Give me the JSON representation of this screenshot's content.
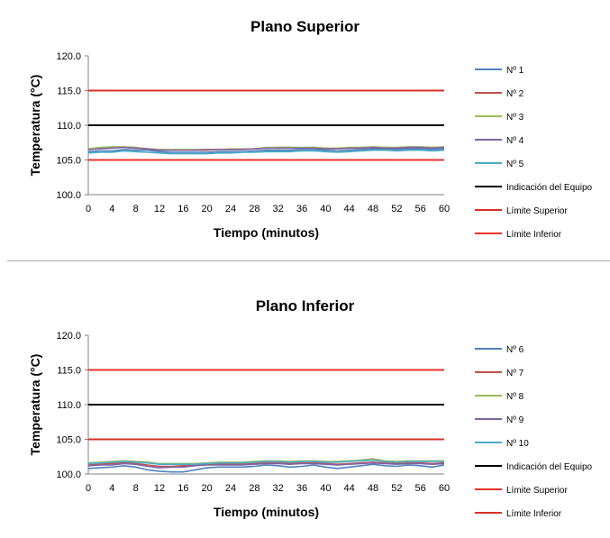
{
  "chart_data": [
    {
      "type": "line",
      "title": "Plano Superior",
      "xlabel": "Tiempo (minutos)",
      "ylabel": "Temperatura (°C)",
      "ylim": [
        100.0,
        120.0
      ],
      "xlim": [
        0,
        60
      ],
      "y_ticks": [
        "100.0",
        "105.0",
        "110.0",
        "115.0",
        "120.0"
      ],
      "x_ticks": [
        "0",
        "4",
        "8",
        "12",
        "16",
        "20",
        "24",
        "28",
        "32",
        "36",
        "40",
        "44",
        "48",
        "52",
        "56",
        "60"
      ],
      "grid": false,
      "legend_position": "right",
      "x": [
        0,
        2,
        4,
        6,
        8,
        10,
        12,
        14,
        16,
        18,
        20,
        22,
        24,
        26,
        28,
        30,
        32,
        34,
        36,
        38,
        40,
        42,
        44,
        46,
        48,
        50,
        52,
        54,
        56,
        58,
        60
      ],
      "series": [
        {
          "name": "Nº 1",
          "color": "#4f81bd",
          "values": [
            106.2,
            106.3,
            106.3,
            106.5,
            106.4,
            106.4,
            106.2,
            106.1,
            106.1,
            106.1,
            106.1,
            106.2,
            106.2,
            106.2,
            106.3,
            106.4,
            106.4,
            106.4,
            106.5,
            106.5,
            106.4,
            106.3,
            106.4,
            106.5,
            106.6,
            106.6,
            106.5,
            106.6,
            106.6,
            106.5,
            106.6
          ]
        },
        {
          "name": "Nº 2",
          "color": "#c0504d",
          "values": [
            106.6,
            106.7,
            106.8,
            106.8,
            106.7,
            106.6,
            106.5,
            106.4,
            106.4,
            106.4,
            106.4,
            106.5,
            106.5,
            106.5,
            106.6,
            106.7,
            106.8,
            106.8,
            106.7,
            106.8,
            106.7,
            106.6,
            106.7,
            106.8,
            106.8,
            106.8,
            106.7,
            106.8,
            106.8,
            106.8,
            106.8
          ]
        },
        {
          "name": "Nº 3",
          "color": "#9bbb59",
          "values": [
            106.6,
            106.8,
            106.9,
            106.9,
            106.8,
            106.6,
            106.5,
            106.5,
            106.5,
            106.5,
            106.5,
            106.5,
            106.6,
            106.6,
            106.6,
            106.8,
            106.8,
            106.8,
            106.8,
            106.8,
            106.7,
            106.7,
            106.8,
            106.8,
            106.9,
            106.8,
            106.8,
            106.9,
            106.9,
            106.8,
            106.9
          ]
        },
        {
          "name": "Nº 4",
          "color": "#8064a2",
          "values": [
            106.5,
            106.6,
            106.7,
            106.8,
            106.7,
            106.6,
            106.4,
            106.4,
            106.4,
            106.4,
            106.5,
            106.5,
            106.5,
            106.5,
            106.6,
            106.7,
            106.7,
            106.7,
            106.7,
            106.7,
            106.6,
            106.6,
            106.7,
            106.7,
            106.8,
            106.7,
            106.7,
            106.8,
            106.8,
            106.7,
            106.8
          ]
        },
        {
          "name": "Nº 5",
          "color": "#4bacc6",
          "values": [
            106.0,
            106.1,
            106.1,
            106.3,
            106.2,
            106.1,
            106.0,
            105.9,
            105.9,
            105.9,
            105.9,
            106.0,
            106.0,
            106.1,
            106.1,
            106.2,
            106.2,
            106.2,
            106.3,
            106.3,
            106.2,
            106.1,
            106.2,
            106.3,
            106.4,
            106.4,
            106.3,
            106.4,
            106.4,
            106.3,
            106.4
          ]
        },
        {
          "name": "Indicación del Equipo",
          "color": "#000000",
          "values": [
            110,
            110,
            110,
            110,
            110,
            110,
            110,
            110,
            110,
            110,
            110,
            110,
            110,
            110,
            110,
            110,
            110,
            110,
            110,
            110,
            110,
            110,
            110,
            110,
            110,
            110,
            110,
            110,
            110,
            110,
            110
          ]
        },
        {
          "name": "Límite Superior",
          "color": "#d93025",
          "values": [
            115,
            115,
            115,
            115,
            115,
            115,
            115,
            115,
            115,
            115,
            115,
            115,
            115,
            115,
            115,
            115,
            115,
            115,
            115,
            115,
            115,
            115,
            115,
            115,
            115,
            115,
            115,
            115,
            115,
            115,
            115
          ]
        },
        {
          "name": "Límite Inferior",
          "color": "#e8322a",
          "values": [
            105,
            105,
            105,
            105,
            105,
            105,
            105,
            105,
            105,
            105,
            105,
            105,
            105,
            105,
            105,
            105,
            105,
            105,
            105,
            105,
            105,
            105,
            105,
            105,
            105,
            105,
            105,
            105,
            105,
            105,
            105
          ]
        }
      ]
    },
    {
      "type": "line",
      "title": "Plano Inferior",
      "xlabel": "Tiempo (minutos)",
      "ylabel": "Temperatura (°C)",
      "ylim": [
        100.0,
        120.0
      ],
      "xlim": [
        0,
        60
      ],
      "y_ticks": [
        "100.0",
        "105.0",
        "110.0",
        "115.0",
        "120.0"
      ],
      "x_ticks": [
        "0",
        "4",
        "8",
        "12",
        "16",
        "20",
        "24",
        "28",
        "32",
        "36",
        "40",
        "44",
        "48",
        "52",
        "56",
        "60"
      ],
      "grid": false,
      "legend_position": "right",
      "x": [
        0,
        2,
        4,
        6,
        8,
        10,
        12,
        14,
        16,
        18,
        20,
        22,
        24,
        26,
        28,
        30,
        32,
        34,
        36,
        38,
        40,
        42,
        44,
        46,
        48,
        50,
        52,
        54,
        56,
        58,
        60
      ],
      "series": [
        {
          "name": "Nº 6",
          "color": "#4f81bd",
          "values": [
            100.8,
            100.9,
            101.0,
            101.2,
            101.0,
            100.6,
            100.4,
            100.3,
            100.3,
            100.6,
            100.9,
            101.0,
            101.0,
            101.0,
            101.1,
            101.3,
            101.2,
            101.0,
            101.1,
            101.3,
            101.0,
            100.8,
            101.0,
            101.2,
            101.4,
            101.2,
            101.1,
            101.3,
            101.2,
            101.0,
            101.3
          ]
        },
        {
          "name": "Nº 7",
          "color": "#c0504d",
          "values": [
            101.3,
            101.4,
            101.5,
            101.6,
            101.5,
            101.3,
            101.1,
            101.1,
            101.2,
            101.3,
            101.4,
            101.4,
            101.4,
            101.4,
            101.5,
            101.6,
            101.6,
            101.5,
            101.6,
            101.6,
            101.5,
            101.4,
            101.5,
            101.6,
            101.7,
            101.6,
            101.5,
            101.6,
            101.6,
            101.5,
            101.6
          ]
        },
        {
          "name": "Nº 8",
          "color": "#9bbb59",
          "values": [
            101.6,
            101.7,
            101.8,
            101.9,
            101.8,
            101.7,
            101.5,
            101.5,
            101.5,
            101.5,
            101.6,
            101.7,
            101.7,
            101.7,
            101.8,
            101.9,
            101.9,
            101.8,
            101.9,
            101.9,
            101.8,
            101.8,
            101.9,
            102.0,
            102.2,
            101.9,
            101.8,
            101.9,
            101.9,
            101.9,
            101.9
          ]
        },
        {
          "name": "Nº 9",
          "color": "#8064a2",
          "values": [
            101.2,
            101.3,
            101.3,
            101.5,
            101.4,
            101.1,
            100.9,
            101.0,
            101.0,
            101.2,
            101.3,
            101.3,
            101.3,
            101.3,
            101.4,
            101.5,
            101.5,
            101.4,
            101.5,
            101.5,
            101.4,
            101.3,
            101.4,
            101.5,
            101.6,
            101.5,
            101.4,
            101.5,
            101.5,
            101.4,
            101.5
          ]
        },
        {
          "name": "Nº 10",
          "color": "#4bacc6",
          "values": [
            101.5,
            101.6,
            101.7,
            101.8,
            101.7,
            101.6,
            101.4,
            101.4,
            101.4,
            101.4,
            101.5,
            101.6,
            101.6,
            101.6,
            101.7,
            101.8,
            101.8,
            101.7,
            101.8,
            101.8,
            101.7,
            101.7,
            101.8,
            101.9,
            102.0,
            101.8,
            101.7,
            101.8,
            101.8,
            101.8,
            101.8
          ]
        },
        {
          "name": "Indicación del Equipo",
          "color": "#000000",
          "values": [
            110,
            110,
            110,
            110,
            110,
            110,
            110,
            110,
            110,
            110,
            110,
            110,
            110,
            110,
            110,
            110,
            110,
            110,
            110,
            110,
            110,
            110,
            110,
            110,
            110,
            110,
            110,
            110,
            110,
            110,
            110
          ]
        },
        {
          "name": "Límite Superior",
          "color": "#e8322a",
          "values": [
            115,
            115,
            115,
            115,
            115,
            115,
            115,
            115,
            115,
            115,
            115,
            115,
            115,
            115,
            115,
            115,
            115,
            115,
            115,
            115,
            115,
            115,
            115,
            115,
            115,
            115,
            115,
            115,
            115,
            115,
            115
          ]
        },
        {
          "name": "Límite Inferior",
          "color": "#d93025",
          "values": [
            105,
            105,
            105,
            105,
            105,
            105,
            105,
            105,
            105,
            105,
            105,
            105,
            105,
            105,
            105,
            105,
            105,
            105,
            105,
            105,
            105,
            105,
            105,
            105,
            105,
            105,
            105,
            105,
            105,
            105,
            105
          ]
        }
      ]
    }
  ]
}
